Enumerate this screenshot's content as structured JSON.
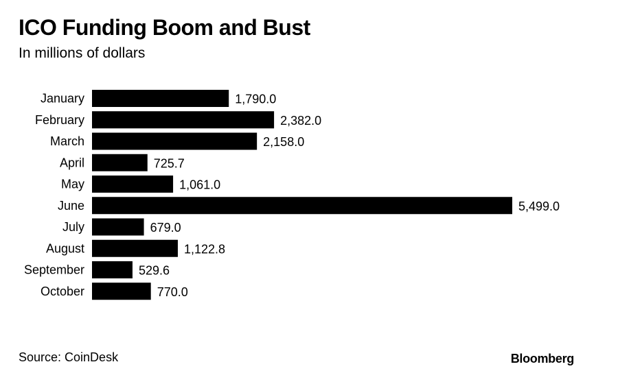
{
  "header": {
    "title": "ICO Funding Boom and Bust",
    "subtitle": "In millions of dollars"
  },
  "footer": {
    "source": "Source: CoinDesk",
    "brand": "Bloomberg"
  },
  "colors": {
    "bar": "#000000",
    "background": "#ffffff",
    "text": "#000000"
  },
  "chart_data": {
    "type": "bar",
    "orientation": "horizontal",
    "title": "ICO Funding Boom and Bust",
    "subtitle": "In millions of dollars",
    "categories": [
      "January",
      "February",
      "March",
      "April",
      "May",
      "June",
      "July",
      "August",
      "September",
      "October"
    ],
    "values": [
      1790.0,
      2382.0,
      2158.0,
      725.7,
      1061.0,
      5499.0,
      679.0,
      1122.8,
      529.6,
      770.0
    ],
    "value_labels": [
      "1,790.0",
      "2,382.0",
      "2,158.0",
      "725.7",
      "1,061.0",
      "5,499.0",
      "679.0",
      "1,122.8",
      "529.6",
      "770.0"
    ],
    "xlabel": "",
    "ylabel": "",
    "xlim": [
      0,
      5499.0
    ],
    "grid": false,
    "legend": "none"
  }
}
